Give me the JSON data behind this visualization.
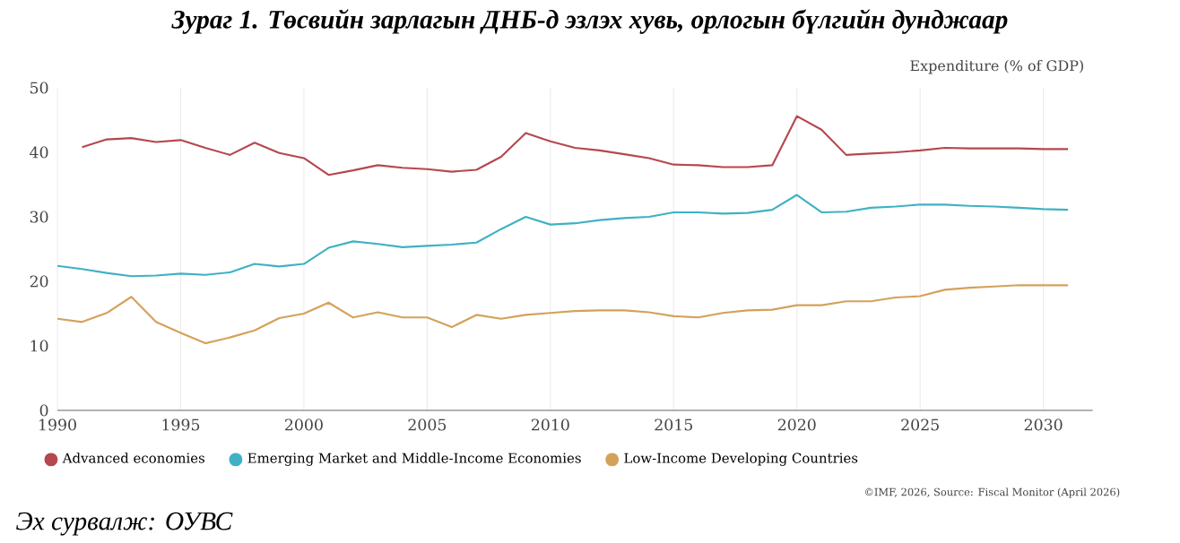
{
  "chart_data": {
    "type": "line",
    "title": "Зураг 1. Төсвийн зарлагын ДНБ-д эзлэх хувь, орлогын бүлгийн дунджаар",
    "ylabel": "Expenditure (% of GDP)",
    "annotations": [
      "©IMF, 2026, Source: Fiscal Monitor (April 2026)",
      "Эх сурвалж: ОУВС"
    ],
    "xlim": [
      1990,
      2032
    ],
    "xticks": [
      1990,
      1995,
      2000,
      2005,
      2010,
      2015,
      2020,
      2025,
      2030
    ],
    "ylim": [
      0,
      50
    ],
    "yticks": [
      0,
      10,
      20,
      30,
      40,
      50
    ],
    "grid": "x",
    "legend": "bottom",
    "series": [
      {
        "name": "Advanced economies",
        "color": "#b5474f",
        "x": [
          1991,
          1992,
          1993,
          1994,
          1995,
          1996,
          1997,
          1998,
          1999,
          2000,
          2001,
          2002,
          2003,
          2004,
          2005,
          2006,
          2007,
          2008,
          2009,
          2010,
          2011,
          2012,
          2013,
          2014,
          2015,
          2016,
          2017,
          2018,
          2019,
          2020,
          2021,
          2022,
          2023,
          2024,
          2025,
          2026,
          2027,
          2028,
          2029,
          2030,
          2031
        ],
        "values": [
          40.8,
          42.0,
          42.2,
          41.6,
          41.9,
          40.7,
          39.6,
          41.5,
          39.9,
          39.1,
          36.5,
          37.2,
          38.0,
          37.6,
          37.4,
          37.0,
          37.3,
          39.3,
          43.0,
          41.7,
          40.7,
          40.3,
          39.7,
          39.1,
          38.1,
          38.0,
          37.7,
          37.7,
          38.0,
          45.6,
          43.5,
          39.6,
          39.8,
          40.0,
          40.3,
          40.7,
          40.6,
          40.6,
          40.6,
          40.5,
          40.5
        ]
      },
      {
        "name": "Emerging Market and Middle-Income Economies",
        "color": "#3fb1c4",
        "x": [
          1990,
          1991,
          1992,
          1993,
          1994,
          1995,
          1996,
          1997,
          1998,
          1999,
          2000,
          2001,
          2002,
          2003,
          2004,
          2005,
          2006,
          2007,
          2008,
          2009,
          2010,
          2011,
          2012,
          2013,
          2014,
          2015,
          2016,
          2017,
          2018,
          2019,
          2020,
          2021,
          2022,
          2023,
          2024,
          2025,
          2026,
          2027,
          2028,
          2029,
          2030,
          2031
        ],
        "values": [
          22.4,
          21.9,
          21.3,
          20.8,
          20.9,
          21.2,
          21.0,
          21.4,
          22.7,
          22.3,
          22.7,
          25.2,
          26.2,
          25.8,
          25.3,
          25.5,
          25.7,
          26.0,
          28.1,
          30.0,
          28.8,
          29.0,
          29.5,
          29.8,
          30.0,
          30.7,
          30.7,
          30.5,
          30.6,
          31.1,
          33.4,
          30.7,
          30.8,
          31.4,
          31.6,
          31.9,
          31.9,
          31.7,
          31.6,
          31.4,
          31.2,
          31.1
        ]
      },
      {
        "name": "Low-Income Developing Countries",
        "color": "#d4a15a",
        "x": [
          1990,
          1991,
          1992,
          1993,
          1994,
          1995,
          1996,
          1997,
          1998,
          1999,
          2000,
          2001,
          2002,
          2003,
          2004,
          2005,
          2006,
          2007,
          2008,
          2009,
          2010,
          2011,
          2012,
          2013,
          2014,
          2015,
          2016,
          2017,
          2018,
          2019,
          2020,
          2021,
          2022,
          2023,
          2024,
          2025,
          2026,
          2027,
          2028,
          2029,
          2030,
          2031
        ],
        "values": [
          14.2,
          13.7,
          15.1,
          17.6,
          13.7,
          12.0,
          10.4,
          11.3,
          12.4,
          14.3,
          15.0,
          16.7,
          14.4,
          15.2,
          14.4,
          14.4,
          12.9,
          14.8,
          14.2,
          14.8,
          15.1,
          15.4,
          15.5,
          15.5,
          15.2,
          14.6,
          14.4,
          15.1,
          15.5,
          15.6,
          16.3,
          16.3,
          16.9,
          16.9,
          17.5,
          17.7,
          18.7,
          19.0,
          19.2,
          19.4,
          19.4,
          19.4
        ]
      }
    ]
  }
}
